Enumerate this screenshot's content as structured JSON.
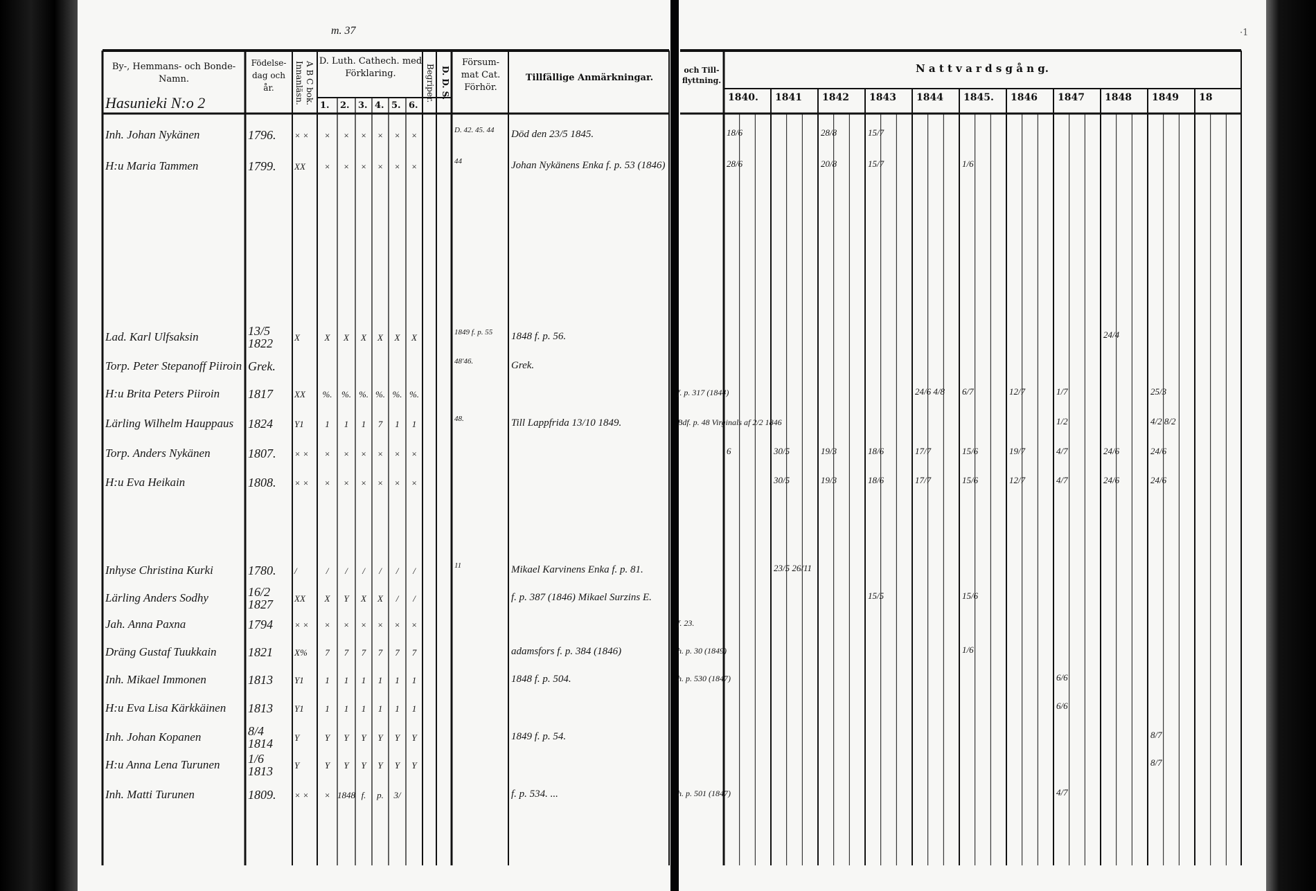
{
  "document": {
    "page_mark": "m. 37",
    "village": "Hasunieki N:o 2",
    "corner_mark": "·1"
  },
  "headers": {
    "name": "By-, Hemmans- och Bonde-Namn.",
    "birth": "Födelse-dag och år.",
    "abc": "A B C bok. Innanläsn.",
    "catechism": "D. Luth. Cathech. med Förklaring.",
    "catechism_parts": [
      "1.",
      "2.",
      "3.",
      "4.",
      "5.",
      "6."
    ],
    "begriper": "Begriper.",
    "dds": "D. D. S.",
    "forsummat": "Försum-mat Cat. Förhör.",
    "remarks": "Tillfällige Anmärkningar.",
    "moving": "och Till-flyttning.",
    "communion": "N a t t v a r d s g å n g.",
    "years": [
      "1840.",
      "1841",
      "1842",
      "1843",
      "1844",
      "1845.",
      "1846",
      "1847",
      "1848",
      "1849",
      "18"
    ]
  },
  "rows": [
    {
      "name": "Inh. Johan Nykänen",
      "birth": "1796.",
      "abc": "× ×",
      "cat": [
        "×",
        "×",
        "×",
        "×",
        "×",
        "×"
      ],
      "forsummat": "D. 42. 45. 44",
      "remark": "Död den 23/5 1845.",
      "moving": ""
    },
    {
      "name": "H:u Maria Tammen",
      "birth": "1799.",
      "abc": "XX",
      "cat": [
        "×",
        "×",
        "×",
        "×",
        "×",
        "×"
      ],
      "forsummat": "44",
      "remark": "Johan Nykänens Enka f. p. 53 (1846)",
      "moving": ""
    },
    {
      "name": "Lad. Karl Ulfsaksin",
      "birth": "13/5 1822",
      "abc": "X",
      "cat": [
        "X",
        "X",
        "X",
        "X",
        "X",
        "X"
      ],
      "forsummat": "1849 f. p. 55",
      "remark": "1848 f. p. 56.",
      "moving": ""
    },
    {
      "name": "Torp. Peter Stepanoff Piiroin",
      "birth": "Grek.",
      "abc": "",
      "cat": [
        "",
        "",
        "",
        "",
        "",
        ""
      ],
      "forsummat": "48'46.",
      "remark": "Grek.",
      "moving": ""
    },
    {
      "name": "H:u Brita Peters Piiroin",
      "birth": "1817",
      "abc": "XX",
      "cat": [
        "%.",
        "%.",
        "%.",
        "%.",
        "%.",
        "%."
      ],
      "forsummat": "",
      "remark": "",
      "moving": "f. p. 317 (1844)"
    },
    {
      "name": "Lärling Wilhelm Hauppaus",
      "birth": "1824",
      "abc": "Y1",
      "cat": [
        "1",
        "1",
        "1",
        "7",
        "1",
        "1"
      ],
      "forsummat": "48.",
      "remark": "Till Lappfrida 13/10 1849.",
      "moving": "Bdf. p. 48 Virginals af 2/2 1846"
    },
    {
      "name": "Torp. Anders Nykänen",
      "birth": "1807.",
      "abc": "× ×",
      "cat": [
        "×",
        "×",
        "×",
        "×",
        "×",
        "×"
      ],
      "forsummat": "",
      "remark": "",
      "moving": ""
    },
    {
      "name": "H:u Eva Heikain",
      "birth": "1808.",
      "abc": "× ×",
      "cat": [
        "×",
        "×",
        "×",
        "×",
        "×",
        "×"
      ],
      "forsummat": "",
      "remark": "",
      "moving": ""
    },
    {
      "name": "Inhyse Christina Kurki",
      "birth": "1780.",
      "abc": "/",
      "cat": [
        "/",
        "/",
        "/",
        "/",
        "/",
        "/"
      ],
      "forsummat": "11",
      "remark": "Mikael Karvinens Enka f. p. 81.",
      "moving": ""
    },
    {
      "name": "Lärling Anders Sodhy",
      "birth": "16/2 1827",
      "abc": "XX",
      "cat": [
        "X",
        "Y",
        "X",
        "X",
        "/",
        "/"
      ],
      "forsummat": "",
      "remark": "f. p. 387 (1846) Mikael Surzins E.",
      "moving": ""
    },
    {
      "name": "Jah. Anna Paxna",
      "birth": "1794",
      "abc": "× ×",
      "cat": [
        "×",
        "×",
        "×",
        "×",
        "×",
        "×"
      ],
      "forsummat": "",
      "remark": "",
      "moving": "f. 23."
    },
    {
      "name": "Dräng Gustaf Tuukkain",
      "birth": "1821",
      "abc": "X%",
      "cat": [
        "7",
        "7",
        "7",
        "7",
        "7",
        "7"
      ],
      "forsummat": "",
      "remark": "adamsfors f. p. 384 (1846)",
      "moving": "h. p. 30 (1849)"
    },
    {
      "name": "Inh. Mikael Immonen",
      "birth": "1813",
      "abc": "Y1",
      "cat": [
        "1",
        "1",
        "1",
        "1",
        "1",
        "1"
      ],
      "forsummat": "",
      "remark": "1848 f. p. 504.",
      "moving": "h. p. 530 (1847)"
    },
    {
      "name": "H:u Eva Lisa Kärkkäinen",
      "birth": "1813",
      "abc": "Y1",
      "cat": [
        "1",
        "1",
        "1",
        "1",
        "1",
        "1"
      ],
      "forsummat": "",
      "remark": "",
      "moving": ""
    },
    {
      "name": "Inh. Johan Kopanen",
      "birth": "8/4 1814",
      "abc": "Y",
      "cat": [
        "Y",
        "Y",
        "Y",
        "Y",
        "Y",
        "Y"
      ],
      "forsummat": "",
      "remark": "1849 f. p. 54.",
      "moving": ""
    },
    {
      "name": "H:u Anna Lena Turunen",
      "birth": "1/6 1813",
      "abc": "Y",
      "cat": [
        "Y",
        "Y",
        "Y",
        "Y",
        "Y",
        "Y"
      ],
      "forsummat": "",
      "remark": "",
      "moving": ""
    },
    {
      "name": "Inh. Matti Turunen",
      "birth": "1809.",
      "abc": "× ×",
      "cat": [
        "×",
        "1848",
        "f.",
        "p.",
        "3/",
        ""
      ],
      "forsummat": "",
      "remark": "f. p. 534. ...",
      "moving": "h. p. 501 (1847)"
    }
  ],
  "communion": [
    {
      "row": 0,
      "year": 0,
      "text": "18/6"
    },
    {
      "row": 0,
      "year": 2,
      "text": "28/8"
    },
    {
      "row": 0,
      "year": 3,
      "text": "15/7"
    },
    {
      "row": 1,
      "year": 0,
      "text": "28/6"
    },
    {
      "row": 1,
      "year": 2,
      "text": "20/8"
    },
    {
      "row": 1,
      "year": 3,
      "text": "15/7"
    },
    {
      "row": 1,
      "year": 5,
      "text": "1/6"
    },
    {
      "row": 2,
      "year": 8,
      "text": "24/4"
    },
    {
      "row": 4,
      "year": 4,
      "text": "24/6 4/8"
    },
    {
      "row": 4,
      "year": 5,
      "text": "6/7"
    },
    {
      "row": 4,
      "year": 6,
      "text": "12/7"
    },
    {
      "row": 4,
      "year": 7,
      "text": "1/7"
    },
    {
      "row": 4,
      "year": 9,
      "text": "25/3"
    },
    {
      "row": 5,
      "year": 7,
      "text": "1/2"
    },
    {
      "row": 5,
      "year": 9,
      "text": "4/2 8/2"
    },
    {
      "row": 6,
      "year": 0,
      "text": "6"
    },
    {
      "row": 6,
      "year": 1,
      "text": "30/5"
    },
    {
      "row": 6,
      "year": 2,
      "text": "19/3"
    },
    {
      "row": 6,
      "year": 3,
      "text": "18/6"
    },
    {
      "row": 6,
      "year": 4,
      "text": "17/7"
    },
    {
      "row": 6,
      "year": 5,
      "text": "15/6"
    },
    {
      "row": 6,
      "year": 6,
      "text": "19/7"
    },
    {
      "row": 6,
      "year": 7,
      "text": "4/7"
    },
    {
      "row": 6,
      "year": 8,
      "text": "24/6"
    },
    {
      "row": 6,
      "year": 9,
      "text": "24/6"
    },
    {
      "row": 7,
      "year": 1,
      "text": "30/5"
    },
    {
      "row": 7,
      "year": 2,
      "text": "19/3"
    },
    {
      "row": 7,
      "year": 3,
      "text": "18/6"
    },
    {
      "row": 7,
      "year": 4,
      "text": "17/7"
    },
    {
      "row": 7,
      "year": 5,
      "text": "15/6"
    },
    {
      "row": 7,
      "year": 6,
      "text": "12/7"
    },
    {
      "row": 7,
      "year": 7,
      "text": "4/7"
    },
    {
      "row": 7,
      "year": 8,
      "text": "24/6"
    },
    {
      "row": 7,
      "year": 9,
      "text": "24/6"
    },
    {
      "row": 8,
      "year": 1,
      "text": "23/5 26/11"
    },
    {
      "row": 9,
      "year": 3,
      "text": "15/5"
    },
    {
      "row": 9,
      "year": 5,
      "text": "15/6"
    },
    {
      "row": 11,
      "year": 5,
      "text": "1/6"
    },
    {
      "row": 12,
      "year": 7,
      "text": "6/6"
    },
    {
      "row": 13,
      "year": 7,
      "text": "6/6"
    },
    {
      "row": 14,
      "year": 9,
      "text": "8/7"
    },
    {
      "row": 15,
      "year": 9,
      "text": "8/7"
    },
    {
      "row": 16,
      "year": 7,
      "text": "4/7"
    }
  ]
}
